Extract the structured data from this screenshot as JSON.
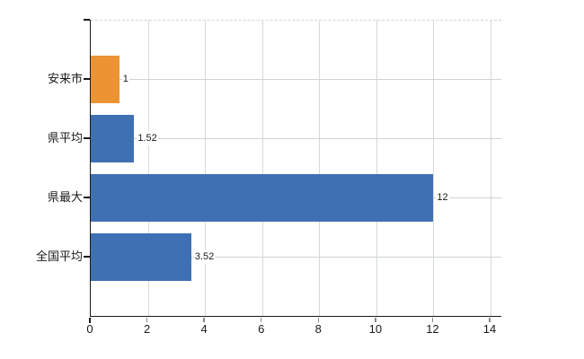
{
  "chart_data": {
    "type": "bar",
    "orientation": "horizontal",
    "title": "",
    "xlabel": "",
    "ylabel": "",
    "categories": [
      "安来市",
      "県平均",
      "県最大",
      "全国平均"
    ],
    "values": [
      1,
      1.52,
      12,
      3.52
    ],
    "value_labels": [
      "1",
      "1.52",
      "12",
      "3.52"
    ],
    "bar_colors": [
      "#ec9434",
      "#3f70b3",
      "#3f70b3",
      "#3f70b3"
    ],
    "x_ticks": [
      0,
      2,
      4,
      6,
      8,
      10,
      12,
      14
    ],
    "x_tick_labels": [
      "0",
      "2",
      "4",
      "6",
      "8",
      "10",
      "12",
      "14"
    ],
    "xlim": [
      0,
      14
    ],
    "grid": "both",
    "legend": "none"
  },
  "colors": {
    "bar_blue": "#3f70b3",
    "bar_orange": "#ec9434",
    "gridline_horizontal": "#ccd5cc",
    "gridline_vertical": "#d4dad4",
    "frame_dashed": "#d8d0d8",
    "axis": "#1a1a1a",
    "text": "#1a1a1a",
    "background": "#ffffff"
  }
}
